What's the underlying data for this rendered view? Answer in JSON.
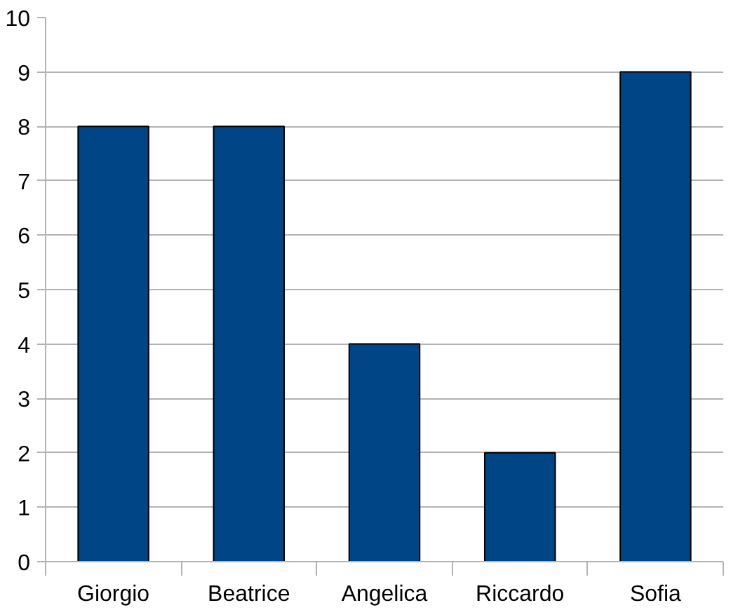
{
  "chart_data": {
    "type": "bar",
    "categories": [
      "Giorgio",
      "Beatrice",
      "Angelica",
      "Riccardo",
      "Sofia"
    ],
    "values": [
      8,
      8,
      4,
      2,
      9
    ],
    "color": "#004586",
    "ylim": [
      0,
      10
    ],
    "yticks": [
      0,
      1,
      2,
      3,
      4,
      5,
      6,
      7,
      8,
      9,
      10
    ],
    "grid": "y"
  }
}
